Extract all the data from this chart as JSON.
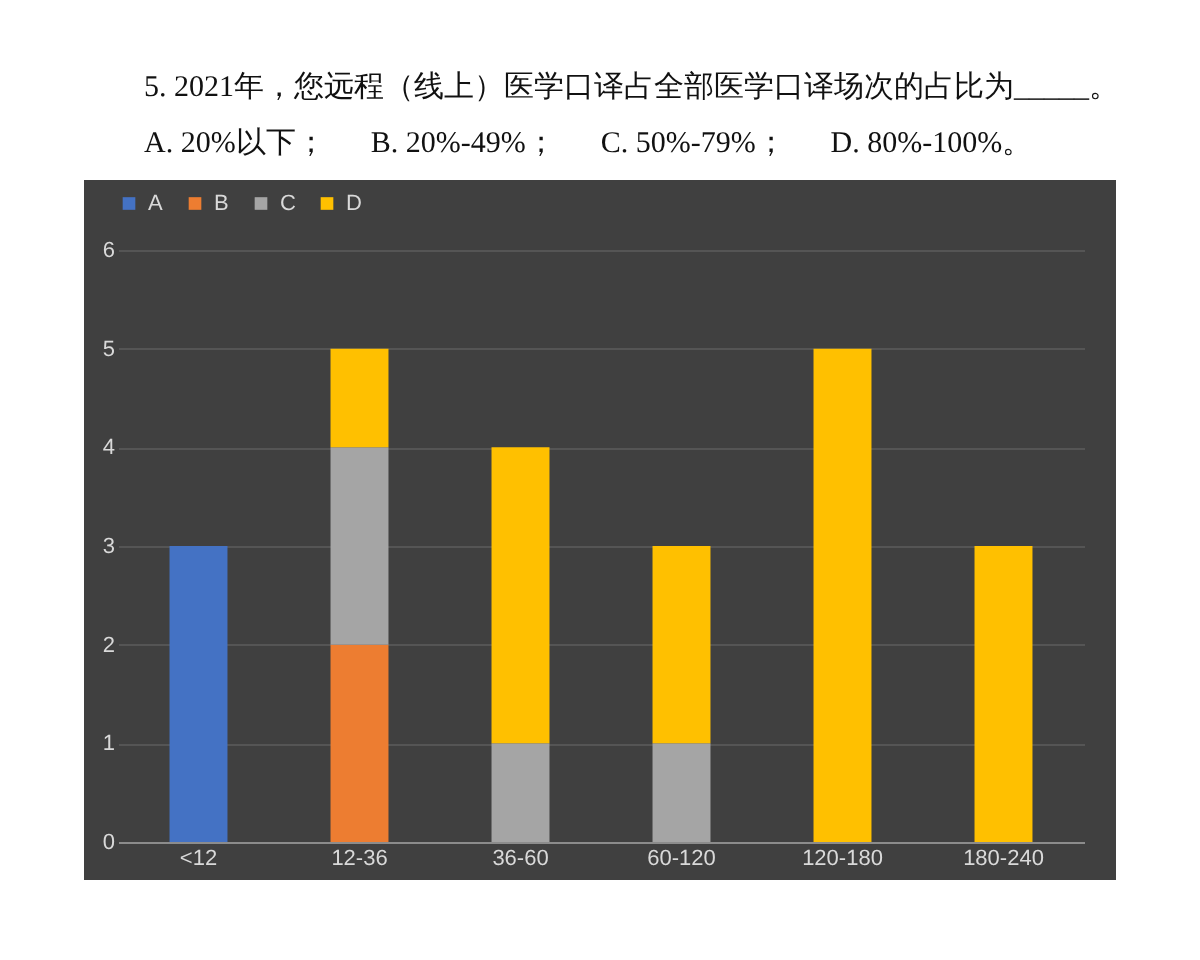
{
  "chart_data": {
    "type": "bar",
    "title": "5. 2021年，您远程（线上）医学口译占全部医学口译场次的占比为_____。",
    "subtitle": "A. 20%以下；      B. 20%-49%；      C. 50%-79%；      D. 80%-100%。",
    "categories": [
      "<12",
      "12-36",
      "36-60",
      "60-120",
      "120-180",
      "180-240"
    ],
    "stacked": true,
    "series": [
      {
        "name": "A",
        "color": "#4472c4",
        "values": [
          3,
          0,
          0,
          0,
          0,
          0
        ]
      },
      {
        "name": "B",
        "color": "#ed7d31",
        "values": [
          0,
          2,
          0,
          0,
          0,
          0
        ]
      },
      {
        "name": "C",
        "color": "#a5a5a5",
        "values": [
          0,
          2,
          1,
          1,
          0,
          0
        ]
      },
      {
        "name": "D",
        "color": "#ffc000",
        "values": [
          0,
          1,
          3,
          2,
          5,
          3
        ]
      }
    ],
    "ylim": [
      0,
      6
    ],
    "yticks": [
      0,
      1,
      2,
      3,
      4,
      5,
      6
    ],
    "grid": "y",
    "legend": "top"
  }
}
